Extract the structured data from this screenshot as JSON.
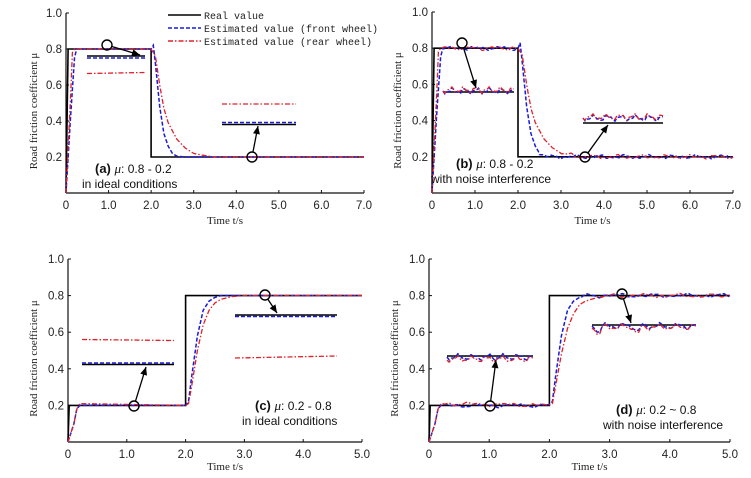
{
  "legend": {
    "entries": [
      {
        "label": "Real value",
        "style": "solid",
        "color": "#000000"
      },
      {
        "label": "Estimated value (front wheel)",
        "style": "dashed",
        "color": "#1a1adc"
      },
      {
        "label": "Estimated value (rear wheel)",
        "style": "dashdot",
        "color": "#e0202a"
      }
    ]
  },
  "chart_data": [
    {
      "id": "a",
      "type": "line",
      "title": "(a) μ: 0.8 - 0.2 in ideal conditions",
      "panel_label": "(a)",
      "mu_label": "μ",
      "condition_range": ": 0.8 - 0.2",
      "condition_text": "in ideal conditions",
      "xlabel": "Time  t/s",
      "ylabel": "Road friction coefficient  μ",
      "xlim": [
        0,
        7
      ],
      "ylim": [
        0,
        1.0
      ],
      "xticks": [
        "0",
        "1.0",
        "2.0",
        "3.0",
        "4.0",
        "5.0",
        "6.0",
        "7.0"
      ],
      "yticks": [
        "0.2",
        "0.4",
        "0.6",
        "0.8",
        "1.0"
      ],
      "step": {
        "from": 0.8,
        "to": 0.2,
        "at": 2.0
      },
      "noise": false,
      "series": [
        {
          "name": "Real value",
          "x": [
            0,
            0.05,
            2.0,
            2.0,
            7.0
          ],
          "y": [
            0,
            0.8,
            0.8,
            0.2,
            0.2
          ]
        },
        {
          "name": "Estimated value (front wheel)",
          "x": [
            0,
            0.1,
            0.2,
            0.25,
            2.0,
            2.05,
            2.1,
            2.2,
            2.3,
            2.4,
            2.5,
            2.6,
            2.8,
            3.0,
            7.0
          ],
          "y": [
            0,
            0.4,
            0.75,
            0.8,
            0.8,
            0.82,
            0.72,
            0.48,
            0.33,
            0.26,
            0.22,
            0.205,
            0.2,
            0.2,
            0.2
          ]
        },
        {
          "name": "Estimated value (rear wheel)",
          "x": [
            0,
            0.1,
            0.15,
            0.2,
            2.0,
            2.1,
            2.2,
            2.3,
            2.4,
            2.6,
            2.8,
            3.0,
            3.2,
            3.5,
            7.0
          ],
          "y": [
            0,
            0.5,
            0.78,
            0.8,
            0.8,
            0.76,
            0.6,
            0.47,
            0.39,
            0.3,
            0.25,
            0.22,
            0.21,
            0.2,
            0.2
          ]
        }
      ]
    },
    {
      "id": "b",
      "type": "line",
      "title": "(b) μ: 0.8 - 0.2 with noise interference",
      "panel_label": "(b)",
      "mu_label": "μ",
      "condition_range": ": 0.8 - 0.2",
      "condition_text": "with noise interference",
      "xlabel": "Time  t/s",
      "ylabel": "Road friction coefficient  μ",
      "xlim": [
        0,
        7
      ],
      "ylim": [
        0,
        1.0
      ],
      "xticks": [
        "0",
        "1.0",
        "2.0",
        "3.0",
        "4.0",
        "5.0",
        "6.0",
        "7.0"
      ],
      "yticks": [
        "0.2",
        "0.4",
        "0.6",
        "0.8",
        "1.0"
      ],
      "step": {
        "from": 0.8,
        "to": 0.2,
        "at": 2.0
      },
      "noise": true,
      "series": [
        {
          "name": "Real value",
          "x": [
            0,
            0.05,
            2.0,
            2.0,
            7.0
          ],
          "y": [
            0,
            0.8,
            0.8,
            0.2,
            0.2
          ]
        },
        {
          "name": "Estimated value (front wheel)",
          "x": [
            0,
            0.1,
            0.2,
            0.25,
            2.0,
            2.05,
            2.1,
            2.2,
            2.3,
            2.4,
            2.5,
            2.6,
            2.8,
            3.0,
            7.0
          ],
          "y": [
            0,
            0.4,
            0.75,
            0.8,
            0.8,
            0.83,
            0.72,
            0.48,
            0.33,
            0.26,
            0.22,
            0.205,
            0.2,
            0.2,
            0.2
          ]
        },
        {
          "name": "Estimated value (rear wheel)",
          "x": [
            0,
            0.1,
            0.15,
            0.2,
            2.0,
            2.1,
            2.2,
            2.3,
            2.4,
            2.6,
            2.8,
            3.0,
            3.2,
            3.5,
            7.0
          ],
          "y": [
            0,
            0.5,
            0.78,
            0.8,
            0.8,
            0.76,
            0.6,
            0.47,
            0.39,
            0.3,
            0.25,
            0.22,
            0.21,
            0.2,
            0.2
          ]
        }
      ]
    },
    {
      "id": "c",
      "type": "line",
      "title": "(c) μ: 0.2 - 0.8 in ideal conditions",
      "panel_label": "(c)",
      "mu_label": "μ",
      "condition_range": ": 0.2 - 0.8",
      "condition_text": "in ideal conditions",
      "xlabel": "Time  t/s",
      "ylabel": "Road friction coefficient  μ",
      "xlim": [
        0,
        5
      ],
      "ylim": [
        0,
        1.0
      ],
      "xticks": [
        "0",
        "1.0",
        "2.0",
        "3.0",
        "4.0",
        "5.0"
      ],
      "yticks": [
        "0.2",
        "0.4",
        "0.6",
        "0.8",
        "1.0"
      ],
      "step": {
        "from": 0.2,
        "to": 0.8,
        "at": 2.0
      },
      "noise": false,
      "series": [
        {
          "name": "Real value",
          "x": [
            0,
            0.02,
            2.0,
            2.0,
            5.0
          ],
          "y": [
            0,
            0.2,
            0.2,
            0.8,
            0.8
          ]
        },
        {
          "name": "Estimated value (front wheel)",
          "x": [
            0,
            0.1,
            0.15,
            0.2,
            2.0,
            2.05,
            2.1,
            2.2,
            2.3,
            2.4,
            2.5,
            2.6,
            2.8,
            3.0,
            5.0
          ],
          "y": [
            0,
            0.1,
            0.18,
            0.2,
            0.2,
            0.22,
            0.35,
            0.58,
            0.72,
            0.77,
            0.79,
            0.8,
            0.8,
            0.8,
            0.8
          ]
        },
        {
          "name": "Estimated value (rear wheel)",
          "x": [
            0,
            0.1,
            0.15,
            0.2,
            2.0,
            2.05,
            2.1,
            2.2,
            2.3,
            2.4,
            2.5,
            2.6,
            2.8,
            3.0,
            5.0
          ],
          "y": [
            0,
            0.1,
            0.18,
            0.21,
            0.2,
            0.21,
            0.3,
            0.5,
            0.64,
            0.72,
            0.76,
            0.78,
            0.795,
            0.8,
            0.8
          ]
        }
      ]
    },
    {
      "id": "d",
      "type": "line",
      "title": "(d) μ: 0.2 ~ 0.8 with noise interference",
      "panel_label": "(d)",
      "mu_label": "μ",
      "condition_range": ": 0.2 ~ 0.8",
      "condition_text": "with noise interference",
      "xlabel": "Time  t/s",
      "ylabel": "Road friction coefficient  μ",
      "xlim": [
        0,
        5
      ],
      "ylim": [
        0,
        1.0
      ],
      "xticks": [
        "0",
        "1.0",
        "2.0",
        "3.0",
        "4.0",
        "5.0"
      ],
      "yticks": [
        "0.2",
        "0.4",
        "0.6",
        "0.8",
        "1.0"
      ],
      "step": {
        "from": 0.2,
        "to": 0.8,
        "at": 2.0
      },
      "noise": true,
      "series": [
        {
          "name": "Real value",
          "x": [
            0,
            0.02,
            2.0,
            2.0,
            5.0
          ],
          "y": [
            0,
            0.2,
            0.2,
            0.8,
            0.8
          ]
        },
        {
          "name": "Estimated value (front wheel)",
          "x": [
            0,
            0.1,
            0.15,
            0.2,
            2.0,
            2.05,
            2.1,
            2.2,
            2.3,
            2.4,
            2.5,
            2.6,
            2.8,
            3.0,
            5.0
          ],
          "y": [
            0,
            0.1,
            0.18,
            0.2,
            0.2,
            0.22,
            0.35,
            0.58,
            0.72,
            0.77,
            0.79,
            0.8,
            0.8,
            0.8,
            0.8
          ]
        },
        {
          "name": "Estimated value (rear wheel)",
          "x": [
            0,
            0.1,
            0.15,
            0.2,
            2.0,
            2.05,
            2.1,
            2.2,
            2.3,
            2.4,
            2.5,
            2.6,
            2.8,
            3.0,
            5.0
          ],
          "y": [
            0,
            0.1,
            0.18,
            0.21,
            0.2,
            0.21,
            0.3,
            0.48,
            0.62,
            0.7,
            0.75,
            0.77,
            0.79,
            0.8,
            0.8
          ]
        }
      ]
    }
  ]
}
